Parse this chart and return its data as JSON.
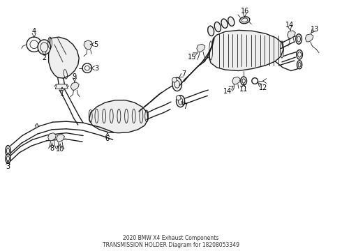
{
  "title": "2020 BMW X4 Exhaust Components\nTRANSMISSION HOLDER Diagram for 18208053349",
  "bg_color": "#ffffff",
  "line_color": "#1a1a1a",
  "label_color": "#000000",
  "lw_main": 1.0,
  "lw_thin": 0.6,
  "label_fs": 7.0
}
